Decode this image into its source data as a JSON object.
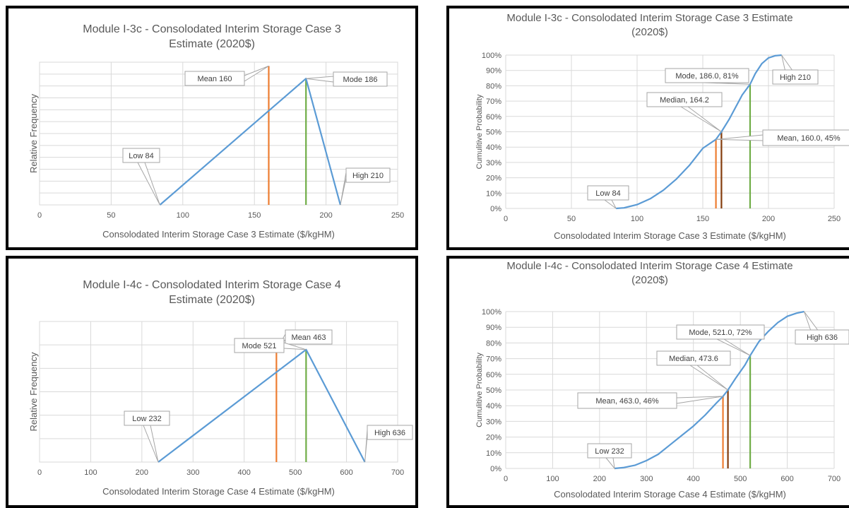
{
  "chart_data": [
    {
      "type": "line",
      "title": "Module I-3c - Consolodated Interim Storage Case 3 Estimate (2020$)",
      "title_lines": [
        "Module I-3c - Consolodated Interim Storage Case 3",
        "Estimate (2020$)"
      ],
      "xlabel": "Consolodated Interim Storage Case 3 Estimate ($/kgHM)",
      "ylabel": "Relative Frequency",
      "xlim": [
        0,
        250
      ],
      "xticks": [
        "0",
        "50",
        "100",
        "150",
        "200",
        "250"
      ],
      "grid": true,
      "series": [
        {
          "x": [
            84,
            186,
            210
          ],
          "y": [
            0,
            1,
            0
          ],
          "color": "#5b9bd5"
        }
      ],
      "vlines": [
        {
          "x": 160,
          "height": 1.1,
          "color": "#ed7d31"
        },
        {
          "x": 186,
          "height": 1.0,
          "color": "#70ad47"
        }
      ],
      "callouts": [
        {
          "text": "Mean 160"
        },
        {
          "text": "Mode 186"
        },
        {
          "text": "Low 84"
        },
        {
          "text": "High 210"
        }
      ]
    },
    {
      "type": "line",
      "title": "Module I-3c - Consolodated Interim Storage Case 3 Estimate (2020$)",
      "title_lines": [
        "Module I-3c - Consolodated Interim Storage Case 3 Estimate",
        "(2020$)"
      ],
      "xlabel": "Consolodated Interim Storage Case 3 Estimate ($/kgHM)",
      "ylabel": "Cumulitive Probability",
      "xlim": [
        0,
        250
      ],
      "ylim": [
        0,
        1
      ],
      "xticks": [
        "0",
        "50",
        "100",
        "150",
        "200",
        "250"
      ],
      "yticks": [
        "0%",
        "10%",
        "20%",
        "30%",
        "40%",
        "50%",
        "60%",
        "70%",
        "80%",
        "90%",
        "100%"
      ],
      "grid": true,
      "series": [
        {
          "x": [
            84,
            90,
            100,
            110,
            120,
            130,
            140,
            150,
            160,
            164.2,
            170,
            180,
            186,
            190,
            195,
            200,
            205,
            210
          ],
          "y": [
            0,
            0.0035,
            0.025,
            0.063,
            0.119,
            0.192,
            0.283,
            0.392,
            0.45,
            0.5,
            0.58,
            0.74,
            0.81,
            0.88,
            0.945,
            0.982,
            0.996,
            1.0
          ],
          "color": "#5b9bd5"
        }
      ],
      "vlines": [
        {
          "x": 160,
          "height": 0.45,
          "color": "#ed7d31"
        },
        {
          "x": 164.2,
          "height": 0.5,
          "color": "#843c0c"
        },
        {
          "x": 186,
          "height": 0.81,
          "color": "#70ad47"
        }
      ],
      "callouts": [
        {
          "text": "Mode, 186.0, 81%"
        },
        {
          "text": "High 210"
        },
        {
          "text": "Median, 164.2"
        },
        {
          "text": "Mean, 160.0, 45%"
        },
        {
          "text": "Low 84"
        }
      ]
    },
    {
      "type": "line",
      "title": "Module I-4c - Consolodated Interim Storage Case 4 Estimate (2020$)",
      "title_lines": [
        "Module I-4c - Consolodated Interim Storage Case 4",
        "Estimate (2020$)"
      ],
      "xlabel": "Consolodated Interim Storage Case 4 Estimate ($/kgHM)",
      "ylabel": "Relative Frequency",
      "xlim": [
        0,
        700
      ],
      "xticks": [
        "0",
        "100",
        "200",
        "300",
        "400",
        "500",
        "600",
        "700"
      ],
      "grid": true,
      "series": [
        {
          "x": [
            232,
            521,
            636
          ],
          "y": [
            0,
            1,
            0
          ],
          "color": "#5b9bd5"
        }
      ],
      "vlines": [
        {
          "x": 463,
          "height": 1.0,
          "color": "#ed7d31"
        },
        {
          "x": 521,
          "height": 1.0,
          "color": "#70ad47"
        }
      ],
      "callouts": [
        {
          "text": "Mean 463"
        },
        {
          "text": "Mode 521"
        },
        {
          "text": "Low 232"
        },
        {
          "text": "High 636"
        }
      ]
    },
    {
      "type": "line",
      "title": "Module I-4c - Consolodated Interim Storage Case 4 Estimate (2020$)",
      "title_lines": [
        "Module I-4c - Consolodated Interim Storage Case 4 Estimate",
        "(2020$)"
      ],
      "xlabel": "Consolodated Interim Storage Case 4 Estimate ($/kgHM)",
      "ylabel": "Cumulitive Probability",
      "xlim": [
        0,
        700
      ],
      "ylim": [
        0,
        1
      ],
      "xticks": [
        "0",
        "100",
        "200",
        "300",
        "400",
        "500",
        "600",
        "700"
      ],
      "yticks": [
        "0%",
        "10%",
        "20%",
        "30%",
        "40%",
        "50%",
        "60%",
        "70%",
        "80%",
        "90%",
        "100%"
      ],
      "grid": true,
      "series": [
        {
          "x": [
            232,
            250,
            275,
            300,
            325,
            350,
            375,
            400,
            425,
            450,
            463,
            473.6,
            490,
            510,
            521,
            540,
            560,
            580,
            600,
            620,
            636
          ],
          "y": [
            0,
            0.005,
            0.02,
            0.05,
            0.09,
            0.15,
            0.21,
            0.27,
            0.34,
            0.42,
            0.46,
            0.5,
            0.575,
            0.66,
            0.72,
            0.81,
            0.875,
            0.93,
            0.97,
            0.99,
            1.0
          ],
          "color": "#5b9bd5"
        }
      ],
      "vlines": [
        {
          "x": 463,
          "height": 0.46,
          "color": "#ed7d31"
        },
        {
          "x": 473.6,
          "height": 0.5,
          "color": "#843c0c"
        },
        {
          "x": 521,
          "height": 0.72,
          "color": "#70ad47"
        }
      ],
      "callouts": [
        {
          "text": "Mode, 521.0, 72%"
        },
        {
          "text": "High 636"
        },
        {
          "text": "Median, 473.6"
        },
        {
          "text": "Mean, 463.0, 46%"
        },
        {
          "text": "Low 232"
        }
      ]
    }
  ]
}
